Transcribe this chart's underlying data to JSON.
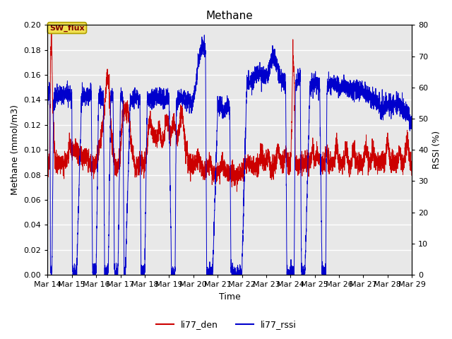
{
  "title": "Methane",
  "xlabel": "Time",
  "ylabel_left": "Methane (mmol/m3)",
  "ylabel_right": "RSSI (%)",
  "ylim_left": [
    0.0,
    0.2
  ],
  "ylim_right": [
    0,
    80
  ],
  "yticks_left": [
    0.0,
    0.02,
    0.04,
    0.06,
    0.08,
    0.1,
    0.12,
    0.14,
    0.16,
    0.18,
    0.2
  ],
  "yticks_right": [
    0,
    10,
    20,
    30,
    40,
    50,
    60,
    70,
    80
  ],
  "xtick_labels": [
    "Mar 14",
    "Mar 15",
    "Mar 16",
    "Mar 17",
    "Mar 18",
    "Mar 19",
    "Mar 20",
    "Mar 21",
    "Mar 22",
    "Mar 23",
    "Mar 24",
    "Mar 25",
    "Mar 26",
    "Mar 27",
    "Mar 28",
    "Mar 29"
  ],
  "annotation_text": "SW_flux",
  "line_red_color": "#cc0000",
  "line_blue_color": "#0000cc",
  "legend_red_label": "li77_den",
  "legend_blue_label": "li77_rssi",
  "bg_color": "#e8e8e8",
  "grid_color": "#ffffff",
  "title_fontsize": 11,
  "label_fontsize": 9,
  "tick_fontsize": 8
}
